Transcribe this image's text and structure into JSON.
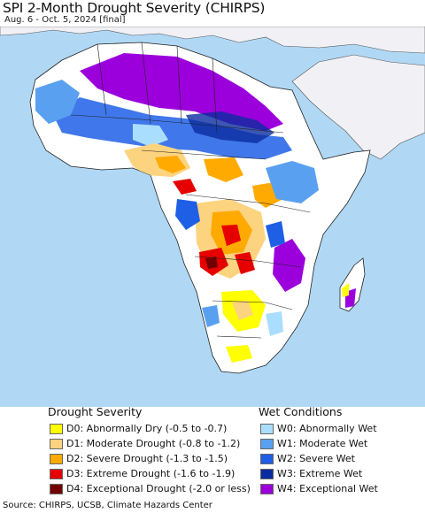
{
  "title": "SPI 2-Month Drought Severity (CHIRPS)",
  "subtitle": "Aug. 6 - Oct. 5, 2024 [final]",
  "legend": {
    "drought_heading": "Drought Severity",
    "wet_heading": "Wet Conditions",
    "drought": [
      {
        "label": "D0: Abnormally Dry (-0.5 to -0.7)",
        "color": "#ffff00"
      },
      {
        "label": "D1: Moderate Drought (-0.8 to -1.2)",
        "color": "#fcd37f"
      },
      {
        "label": "D2: Severe Drought (-1.3 to -1.5)",
        "color": "#ffaa00"
      },
      {
        "label": "D3: Extreme Drought (-1.6 to -1.9)",
        "color": "#e60000"
      },
      {
        "label": "D4: Exceptional Drought (-2.0 or less)",
        "color": "#730000"
      }
    ],
    "wet": [
      {
        "label": "W0: Abnormally Wet",
        "color": "#aadeff"
      },
      {
        "label": "W1: Moderate Wet",
        "color": "#5aa0f0"
      },
      {
        "label": "W2: Severe Wet",
        "color": "#1e5fe6"
      },
      {
        "label": "W3: Extreme Wet",
        "color": "#0a2ca0"
      },
      {
        "label": "W4: Exceptional Wet",
        "color": "#9b00dc"
      }
    ]
  },
  "colors": {
    "ocean": "#b0d8f5",
    "land_outside": "#f1f0f4",
    "land_normal": "#ffffff",
    "border": "#222222"
  },
  "source": "Source: CHIRPS, UCSB, Climate Hazards Center"
}
